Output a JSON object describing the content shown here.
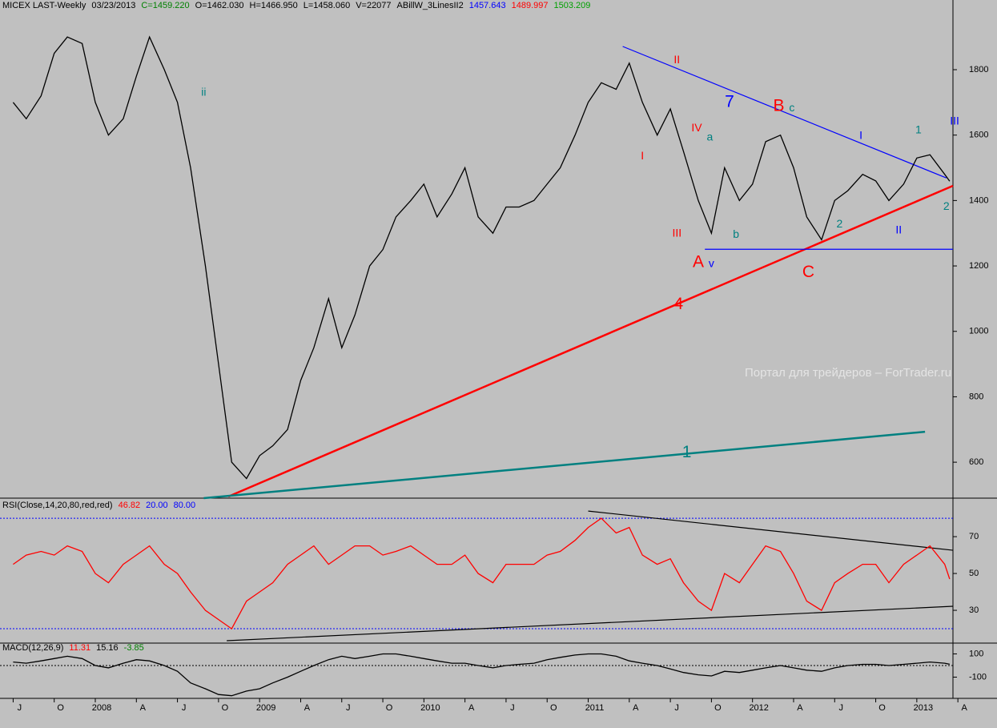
{
  "chart_data": [
    {
      "type": "line",
      "header": [
        {
          "text": "MICEX LAST-Weekly",
          "color": "#000000"
        },
        {
          "text": "03/23/2013",
          "color": "#000000"
        },
        {
          "text": "C=1459.220",
          "color": "#008000"
        },
        {
          "text": "O=1462.030",
          "color": "#000000"
        },
        {
          "text": "H=1466.950",
          "color": "#000000"
        },
        {
          "text": "L=1458.060",
          "color": "#000000"
        },
        {
          "text": "V=22077",
          "color": "#000000"
        },
        {
          "text": "ABillW_3LinesII2",
          "color": "#000000"
        },
        {
          "text": "1457.643",
          "color": "#0000ff"
        },
        {
          "text": "1489.997",
          "color": "#ff0000"
        },
        {
          "text": "1503.209",
          "color": "#00a000"
        }
      ],
      "watermark": "Портал для трейдеров – ForTrader.ru",
      "x": [
        2007.5,
        2007.58,
        2007.67,
        2007.75,
        2007.83,
        2007.92,
        2008.0,
        2008.08,
        2008.17,
        2008.25,
        2008.33,
        2008.42,
        2008.5,
        2008.58,
        2008.67,
        2008.75,
        2008.83,
        2008.92,
        2009.0,
        2009.08,
        2009.17,
        2009.25,
        2009.33,
        2009.42,
        2009.5,
        2009.58,
        2009.67,
        2009.75,
        2009.83,
        2009.92,
        2010.0,
        2010.08,
        2010.17,
        2010.25,
        2010.33,
        2010.42,
        2010.5,
        2010.58,
        2010.67,
        2010.75,
        2010.83,
        2010.92,
        2011.0,
        2011.08,
        2011.17,
        2011.25,
        2011.33,
        2011.42,
        2011.5,
        2011.58,
        2011.67,
        2011.75,
        2011.83,
        2011.92,
        2012.0,
        2012.08,
        2012.17,
        2012.25,
        2012.33,
        2012.42,
        2012.5,
        2012.58,
        2012.67,
        2012.75,
        2012.83,
        2012.92,
        2013.0,
        2013.08,
        2013.17,
        2013.2
      ],
      "series": [
        {
          "color": "#000000",
          "values": [
            1700,
            1650,
            1720,
            1850,
            1900,
            1880,
            1700,
            1600,
            1650,
            1780,
            1900,
            1800,
            1700,
            1500,
            1200,
            900,
            600,
            550,
            620,
            650,
            700,
            850,
            950,
            1100,
            950,
            1050,
            1200,
            1250,
            1350,
            1400,
            1450,
            1350,
            1420,
            1500,
            1350,
            1300,
            1380,
            1380,
            1400,
            1450,
            1500,
            1600,
            1700,
            1760,
            1740,
            1820,
            1700,
            1600,
            1680,
            1550,
            1400,
            1300,
            1500,
            1400,
            1450,
            1580,
            1600,
            1500,
            1350,
            1280,
            1400,
            1430,
            1480,
            1460,
            1400,
            1450,
            1530,
            1540,
            1480,
            1459
          ]
        }
      ],
      "xlim": [
        2007.42,
        2013.22
      ],
      "ylim": [
        495,
        2013
      ],
      "yticks": [
        600,
        800,
        1000,
        1200,
        1400,
        1600,
        1800
      ],
      "trendlines": [
        {
          "color": "#ff0000",
          "x": [
            2008.81,
            2013.22
          ],
          "y": [
            495,
            1445
          ]
        },
        {
          "color": "#008080",
          "x": [
            2008.66,
            2013.05
          ],
          "y": [
            490,
            693
          ]
        },
        {
          "color": "#0000ff",
          "x": [
            2011.21,
            2013.18
          ],
          "y": [
            1871,
            1469
          ]
        },
        {
          "color": "#0000ff",
          "x": [
            2011.71,
            2013.22
          ],
          "y": [
            1251,
            1251
          ]
        }
      ],
      "annotations_large": [
        {
          "text": "A",
          "color": "#ff0000",
          "x": 2011.67,
          "y": 1210
        },
        {
          "text": "B",
          "color": "#ff0000",
          "x": 2012.16,
          "y": 1687
        },
        {
          "text": "C",
          "color": "#ff0000",
          "x": 2012.34,
          "y": 1180
        },
        {
          "text": "4",
          "color": "#ff0000",
          "x": 2011.55,
          "y": 1082
        },
        {
          "text": "7",
          "color": "#0000ff",
          "x": 2011.86,
          "y": 1700
        },
        {
          "text": "1",
          "color": "#008080",
          "x": 2011.6,
          "y": 629
        }
      ],
      "annotations": [
        {
          "text": "II",
          "color": "#ff0000",
          "x": 2011.54,
          "y": 1829
        },
        {
          "text": "I",
          "color": "#ff0000",
          "x": 2011.33,
          "y": 1535
        },
        {
          "text": "IV",
          "color": "#ff0000",
          "x": 2011.66,
          "y": 1621
        },
        {
          "text": "III",
          "color": "#ff0000",
          "x": 2011.54,
          "y": 1298
        },
        {
          "text": "v",
          "color": "#0000ff",
          "x": 2011.75,
          "y": 1205
        },
        {
          "text": "a",
          "color": "#008080",
          "x": 2011.74,
          "y": 1592
        },
        {
          "text": "b",
          "color": "#008080",
          "x": 2011.9,
          "y": 1295
        },
        {
          "text": "c",
          "color": "#008080",
          "x": 2012.24,
          "y": 1682
        },
        {
          "text": "I",
          "color": "#0000ff",
          "x": 2012.66,
          "y": 1597
        },
        {
          "text": "1",
          "color": "#008080",
          "x": 2013.01,
          "y": 1614
        },
        {
          "text": "III",
          "color": "#0000ff",
          "x": 2013.23,
          "y": 1641
        },
        {
          "text": "2",
          "color": "#008080",
          "x": 2012.53,
          "y": 1327
        },
        {
          "text": "II",
          "color": "#0000ff",
          "x": 2012.89,
          "y": 1308
        },
        {
          "text": "2",
          "color": "#008080",
          "x": 2013.18,
          "y": 1381
        },
        {
          "text": "ii",
          "color": "#008080",
          "x": 2008.66,
          "y": 1729
        }
      ]
    },
    {
      "type": "line",
      "header": [
        {
          "text": "RSI(Close,14,20,80,red,red)",
          "color": "#000000"
        },
        {
          "text": "46.82",
          "color": "#ff0000"
        },
        {
          "text": "20.00",
          "color": "#0000ff"
        },
        {
          "text": "80.00",
          "color": "#0000ff"
        }
      ],
      "x": [
        2007.5,
        2007.58,
        2007.67,
        2007.75,
        2007.83,
        2007.92,
        2008.0,
        2008.08,
        2008.17,
        2008.25,
        2008.33,
        2008.42,
        2008.5,
        2008.58,
        2008.67,
        2008.75,
        2008.83,
        2008.92,
        2009.0,
        2009.08,
        2009.17,
        2009.25,
        2009.33,
        2009.42,
        2009.5,
        2009.58,
        2009.67,
        2009.75,
        2009.83,
        2009.92,
        2010.0,
        2010.08,
        2010.17,
        2010.25,
        2010.33,
        2010.42,
        2010.5,
        2010.58,
        2010.67,
        2010.75,
        2010.83,
        2010.92,
        2011.0,
        2011.08,
        2011.17,
        2011.25,
        2011.33,
        2011.42,
        2011.5,
        2011.58,
        2011.67,
        2011.75,
        2011.83,
        2011.92,
        2012.0,
        2012.08,
        2012.17,
        2012.25,
        2012.33,
        2012.42,
        2012.5,
        2012.58,
        2012.67,
        2012.75,
        2012.83,
        2012.92,
        2013.0,
        2013.08,
        2013.17,
        2013.2
      ],
      "series": [
        {
          "color": "#ff0000",
          "values": [
            55,
            60,
            62,
            60,
            65,
            62,
            50,
            45,
            55,
            60,
            65,
            55,
            50,
            40,
            30,
            25,
            20,
            35,
            40,
            45,
            55,
            60,
            65,
            55,
            60,
            65,
            65,
            60,
            62,
            65,
            60,
            55,
            55,
            60,
            50,
            45,
            55,
            55,
            55,
            60,
            62,
            68,
            75,
            80,
            72,
            75,
            60,
            55,
            58,
            45,
            35,
            30,
            50,
            45,
            55,
            65,
            62,
            50,
            35,
            30,
            45,
            50,
            55,
            55,
            45,
            55,
            60,
            65,
            55,
            47
          ]
        }
      ],
      "levels": [
        20,
        80
      ],
      "level_color": "#0000ff",
      "xlim": [
        2007.42,
        2013.22
      ],
      "ylim": [
        13.5,
        89.6
      ],
      "yticks": [
        30,
        50,
        70
      ],
      "trendlines": [
        {
          "color": "#000000",
          "x": [
            2011.0,
            2013.22
          ],
          "y": [
            83.9,
            62.6
          ]
        },
        {
          "color": "#000000",
          "x": [
            2008.8,
            2013.22
          ],
          "y": [
            13.5,
            32.2
          ]
        }
      ]
    },
    {
      "type": "line",
      "header": [
        {
          "text": "MACD(12,26,9)",
          "color": "#000000"
        },
        {
          "text": "11.31",
          "color": "#ff0000"
        },
        {
          "text": "15.16",
          "color": "#000000"
        },
        {
          "text": "-3.85",
          "color": "#008000"
        }
      ],
      "x": [
        2007.5,
        2007.58,
        2007.67,
        2007.75,
        2007.83,
        2007.92,
        2008.0,
        2008.08,
        2008.17,
        2008.25,
        2008.33,
        2008.42,
        2008.5,
        2008.58,
        2008.67,
        2008.75,
        2008.83,
        2008.92,
        2009.0,
        2009.08,
        2009.17,
        2009.25,
        2009.33,
        2009.42,
        2009.5,
        2009.58,
        2009.67,
        2009.75,
        2009.83,
        2009.92,
        2010.0,
        2010.08,
        2010.17,
        2010.25,
        2010.33,
        2010.42,
        2010.5,
        2010.58,
        2010.67,
        2010.75,
        2010.83,
        2010.92,
        2011.0,
        2011.08,
        2011.17,
        2011.25,
        2011.33,
        2011.42,
        2011.5,
        2011.58,
        2011.67,
        2011.75,
        2011.83,
        2011.92,
        2012.0,
        2012.08,
        2012.17,
        2012.25,
        2012.33,
        2012.42,
        2012.5,
        2012.58,
        2012.67,
        2012.75,
        2012.83,
        2012.92,
        2013.0,
        2013.08,
        2013.17,
        2013.2
      ],
      "series": [
        {
          "color": "#000000",
          "values": [
            30,
            20,
            40,
            60,
            80,
            60,
            0,
            -20,
            20,
            50,
            40,
            0,
            -50,
            -150,
            -200,
            -250,
            -260,
            -220,
            -200,
            -150,
            -100,
            -50,
            0,
            50,
            80,
            60,
            80,
            100,
            100,
            80,
            60,
            40,
            20,
            20,
            0,
            -20,
            0,
            10,
            20,
            50,
            70,
            90,
            100,
            100,
            80,
            40,
            20,
            0,
            -30,
            -60,
            -80,
            -90,
            -50,
            -60,
            -40,
            -20,
            0,
            -20,
            -40,
            -50,
            -20,
            0,
            10,
            10,
            0,
            10,
            20,
            30,
            20,
            11
          ]
        }
      ],
      "xlim": [
        2007.42,
        2013.22
      ],
      "ylim": [
        -269,
        179
      ],
      "yticks": [
        {
          "value": -100,
          "label": "-100"
        },
        100
      ],
      "xticks": [
        {
          "value": 2007.5,
          "label": "J"
        },
        {
          "value": 2007.75,
          "label": "O"
        },
        {
          "value": 2008.0,
          "label": "2008"
        },
        {
          "value": 2008.25,
          "label": "A"
        },
        {
          "value": 2008.5,
          "label": "J"
        },
        {
          "value": 2008.75,
          "label": "O"
        },
        {
          "value": 2009.0,
          "label": "2009"
        },
        {
          "value": 2009.25,
          "label": "A"
        },
        {
          "value": 2009.5,
          "label": "J"
        },
        {
          "value": 2009.75,
          "label": "O"
        },
        {
          "value": 2010.0,
          "label": "2010"
        },
        {
          "value": 2010.25,
          "label": "A"
        },
        {
          "value": 2010.5,
          "label": "J"
        },
        {
          "value": 2010.75,
          "label": "O"
        },
        {
          "value": 2011.0,
          "label": "2011"
        },
        {
          "value": 2011.25,
          "label": "A"
        },
        {
          "value": 2011.5,
          "label": "J"
        },
        {
          "value": 2011.75,
          "label": "O"
        },
        {
          "value": 2012.0,
          "label": "2012"
        },
        {
          "value": 2012.25,
          "label": "A"
        },
        {
          "value": 2012.5,
          "label": "J"
        },
        {
          "value": 2012.75,
          "label": "O"
        },
        {
          "value": 2013.0,
          "label": "2013"
        },
        {
          "value": 2013.25,
          "label": "A"
        }
      ]
    }
  ]
}
